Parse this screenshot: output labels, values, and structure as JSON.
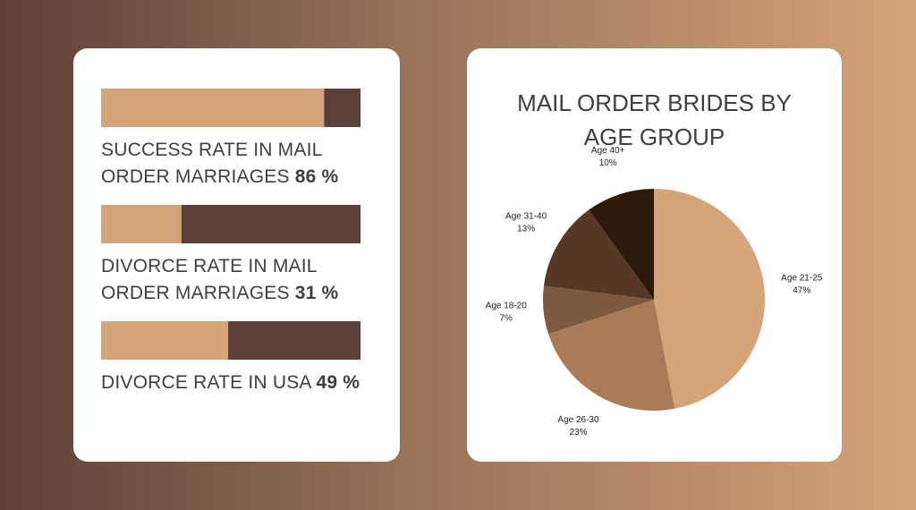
{
  "chart_data": [
    {
      "type": "progress",
      "categories": [
        "SUCCESS RATE IN MAIL ORDER MARRIAGES",
        "DIVORCE RATE IN MAIL ORDER MARRIAGES",
        "DIVORCE RATE IN USA"
      ],
      "values": [
        86,
        31,
        49
      ],
      "value_labels": [
        "86 %",
        "31 %",
        "49 %"
      ],
      "xlim": [
        0,
        100
      ],
      "color": "#d4a57a",
      "track_color": "#5e403a"
    },
    {
      "type": "pie",
      "title": "MAIL ORDER BRIDES BY AGE GROUP",
      "categories": [
        "Age 21-25",
        "Age 26-30",
        "Age 18-20",
        "Age 31-40",
        "Age 40+"
      ],
      "values": [
        47,
        23,
        7,
        13,
        10
      ],
      "value_labels": [
        "47%",
        "23%",
        "7%",
        "13%",
        "10%"
      ],
      "colors": [
        "#d4a57a",
        "#a97b56",
        "#7d5940",
        "#573725",
        "#2e1a0b"
      ]
    }
  ]
}
